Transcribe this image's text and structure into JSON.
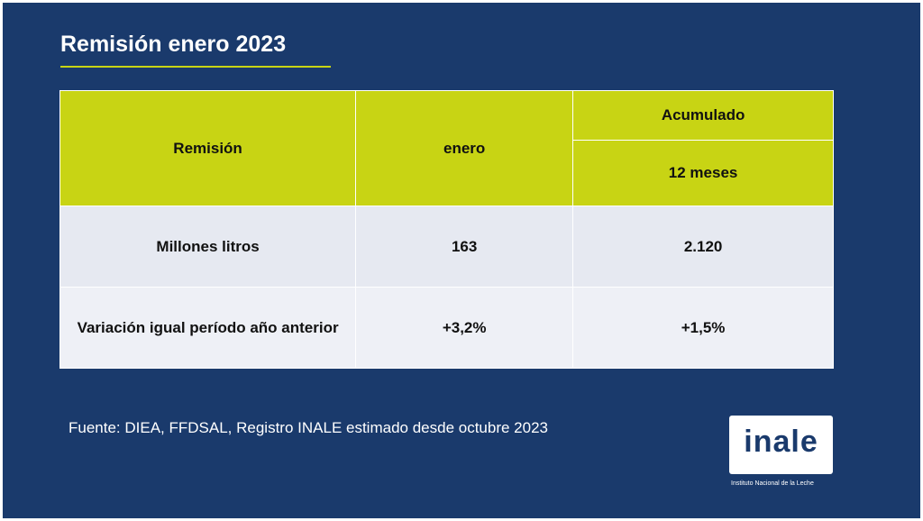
{
  "slide": {
    "title": "Remisión enero 2023",
    "source": "Fuente: DIEA, FFDSAL, Registro INALE estimado desde octubre 2023"
  },
  "table": {
    "headers": {
      "remision": "Remisión",
      "enero": "enero",
      "acumulado": "Acumulado",
      "meses": "12 meses"
    },
    "rows": [
      {
        "label": "Millones litros",
        "enero": "163",
        "acumulado": "2.120"
      },
      {
        "label": "Variación igual período año anterior",
        "enero": "+3,2%",
        "acumulado": "+1,5%"
      }
    ]
  },
  "logo": {
    "text": "inale",
    "caption": "Instituto Nacional de la Leche"
  },
  "colors": {
    "background": "#1a3a6c",
    "accent": "#c8d414",
    "row_light": "#e6e9f1"
  }
}
